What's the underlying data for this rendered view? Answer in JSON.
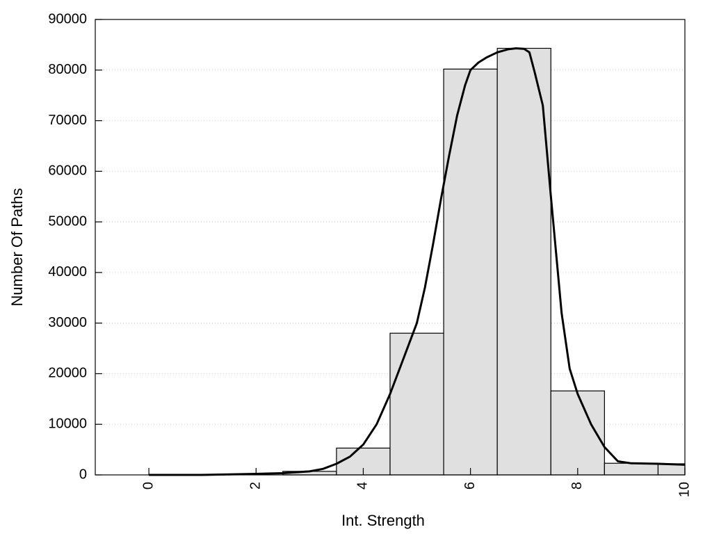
{
  "chart_data": {
    "type": "bar",
    "xlabel": "Int. Strength",
    "ylabel": "Number Of Paths",
    "xlim": [
      -1,
      10
    ],
    "ylim": [
      0,
      90000
    ],
    "x_ticks": [
      0,
      2,
      4,
      6,
      8,
      10
    ],
    "y_ticks": [
      0,
      10000,
      20000,
      30000,
      40000,
      50000,
      60000,
      70000,
      80000,
      90000
    ],
    "grid": "horizontal dotted",
    "bar_width": 1,
    "bars": [
      {
        "x": 0,
        "value": 0
      },
      {
        "x": 1,
        "value": 0
      },
      {
        "x": 2,
        "value": 0
      },
      {
        "x": 3,
        "value": 700
      },
      {
        "x": 4,
        "value": 5300
      },
      {
        "x": 5,
        "value": 28000
      },
      {
        "x": 6,
        "value": 80200
      },
      {
        "x": 7,
        "value": 84300
      },
      {
        "x": 8,
        "value": 16600
      },
      {
        "x": 9,
        "value": 2300
      },
      {
        "x": 10,
        "value": 2200
      }
    ],
    "curve": {
      "x": [
        0,
        1,
        2,
        2.5,
        3,
        3.25,
        3.5,
        3.75,
        4,
        4.25,
        4.5,
        4.75,
        5,
        5.15,
        5.3,
        5.45,
        5.6,
        5.75,
        5.9,
        6,
        6.15,
        6.3,
        6.5,
        6.7,
        6.85,
        7,
        7.1,
        7.2,
        7.35,
        7.5,
        7.7,
        7.85,
        8,
        8.25,
        8.5,
        8.75,
        9,
        9.5,
        10
      ],
      "y": [
        0,
        0,
        200,
        350,
        700,
        1200,
        2200,
        3600,
        6000,
        10000,
        16000,
        23000,
        30000,
        37000,
        45500,
        54500,
        63000,
        71000,
        77000,
        80000,
        81500,
        82500,
        83500,
        84100,
        84300,
        84200,
        83500,
        79500,
        73000,
        55000,
        32000,
        21000,
        16000,
        10000,
        5500,
        2700,
        2300,
        2200,
        2000
      ]
    }
  }
}
